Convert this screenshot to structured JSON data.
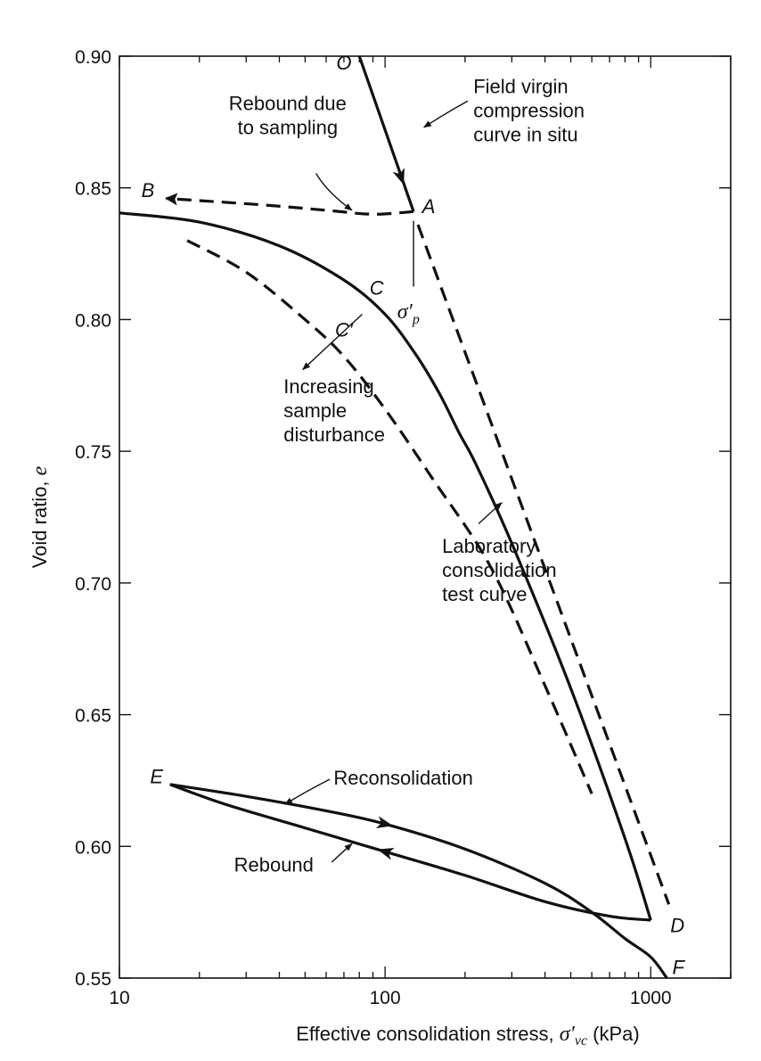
{
  "chart_data": {
    "type": "line",
    "title": "",
    "xlabel": {
      "text": "Effective consolidation stress, ",
      "symbol": "σ′",
      "subscript": "vc",
      "unit": " (kPa)"
    },
    "ylabel": {
      "text": "Void ratio, ",
      "symbol": "e"
    },
    "xscale": "log",
    "xlim": [
      10,
      2000
    ],
    "ylim": [
      0.55,
      0.9
    ],
    "x_ticks": [
      {
        "value": 10,
        "label": "10"
      },
      {
        "value": 100,
        "label": "100"
      },
      {
        "value": 1000,
        "label": "1000"
      }
    ],
    "y_ticks": [
      {
        "value": 0.9,
        "label": "0.90"
      },
      {
        "value": 0.85,
        "label": "0.85"
      },
      {
        "value": 0.8,
        "label": "0.80"
      },
      {
        "value": 0.75,
        "label": "0.75"
      },
      {
        "value": 0.7,
        "label": "0.70"
      },
      {
        "value": 0.65,
        "label": "0.65"
      },
      {
        "value": 0.6,
        "label": "0.60"
      },
      {
        "value": 0.55,
        "label": "0.55"
      }
    ],
    "series": [
      {
        "name": "field-virgin-compression",
        "style": "solid",
        "points": [
          [
            80,
            0.9
          ],
          [
            128,
            0.841
          ]
        ]
      },
      {
        "name": "rebound-due-to-sampling",
        "style": "dashed",
        "points": [
          [
            128,
            0.841
          ],
          [
            90,
            0.84
          ],
          [
            60,
            0.8415
          ],
          [
            35,
            0.8435
          ],
          [
            15,
            0.846
          ]
        ]
      },
      {
        "name": "laboratory-consolidation-curve",
        "style": "solid",
        "points": [
          [
            10,
            0.8405
          ],
          [
            20,
            0.837
          ],
          [
            40,
            0.828
          ],
          [
            70,
            0.815
          ],
          [
            100,
            0.802
          ],
          [
            130,
            0.787
          ],
          [
            160,
            0.772
          ],
          [
            190,
            0.757
          ],
          [
            220,
            0.745
          ],
          [
            300,
            0.715
          ],
          [
            500,
            0.66
          ],
          [
            800,
            0.603
          ],
          [
            1000,
            0.572
          ]
        ]
      },
      {
        "name": "disturbed-curve-cprime",
        "style": "dashed",
        "points": [
          [
            18,
            0.83
          ],
          [
            30,
            0.818
          ],
          [
            50,
            0.8
          ],
          [
            70,
            0.786
          ],
          [
            100,
            0.766
          ],
          [
            150,
            0.74
          ],
          [
            250,
            0.706
          ],
          [
            400,
            0.661
          ],
          [
            600,
            0.62
          ]
        ]
      },
      {
        "name": "field-extension-a-d",
        "style": "dashed",
        "points": [
          [
            133,
            0.836
          ],
          [
            1170,
            0.578
          ]
        ]
      },
      {
        "name": "rebound",
        "style": "solid",
        "points": [
          [
            1000,
            0.572
          ],
          [
            700,
            0.5735
          ],
          [
            400,
            0.579
          ],
          [
            200,
            0.589
          ],
          [
            100,
            0.598
          ],
          [
            50,
            0.607
          ],
          [
            25,
            0.616
          ],
          [
            15.5,
            0.6235
          ]
        ]
      },
      {
        "name": "reconsolidation",
        "style": "solid",
        "points": [
          [
            15.5,
            0.6235
          ],
          [
            30,
            0.619
          ],
          [
            60,
            0.6135
          ],
          [
            100,
            0.6085
          ],
          [
            200,
            0.599
          ],
          [
            400,
            0.586
          ],
          [
            600,
            0.575
          ],
          [
            800,
            0.565
          ],
          [
            1000,
            0.558
          ],
          [
            1150,
            0.55
          ]
        ]
      }
    ],
    "direction_arrows": [
      {
        "series": "field-virgin-compression",
        "at": [
          115,
          0.854
        ]
      },
      {
        "series": "reconsolidation",
        "at": [
          100,
          0.6085
        ]
      },
      {
        "series": "rebound",
        "at": [
          100,
          0.598
        ]
      }
    ],
    "points": [
      {
        "label": "O",
        "x": 70,
        "y": 0.895
      },
      {
        "label": "A",
        "x": 146,
        "y": 0.8405
      },
      {
        "label": "B",
        "x": 12.8,
        "y": 0.8465
      },
      {
        "label": "C",
        "x": 93,
        "y": 0.8095
      },
      {
        "label": "C′",
        "x": 70,
        "y": 0.7935
      },
      {
        "label": "D",
        "x": 1260,
        "y": 0.5675
      },
      {
        "label": "E",
        "x": 13.8,
        "y": 0.624
      },
      {
        "label": "F",
        "x": 1270,
        "y": 0.5515
      }
    ],
    "preconsolidation_marker": {
      "x": 128,
      "y_top": 0.8375,
      "y_bottom": 0.8125,
      "symbol": "σ′",
      "subscript": "p",
      "label_at": [
        120,
        0.8005
      ]
    },
    "annotations": [
      {
        "id": "field-virgin",
        "lines": [
          "Field virgin",
          "compression",
          "curve in situ"
        ],
        "anchor": "start",
        "at": [
          215,
          0.886
        ],
        "pointer": [
          [
            205,
            0.883
          ],
          [
            140,
            0.873
          ]
        ]
      },
      {
        "id": "rebound-sampling",
        "lines": [
          "Rebound due",
          "to sampling"
        ],
        "anchor": "middle",
        "at": [
          43,
          0.8795
        ],
        "pointer": [
          [
            55,
            0.8555
          ],
          [
            75,
            0.8415
          ]
        ]
      },
      {
        "id": "increasing-disturbance",
        "lines": [
          "Increasing",
          "sample",
          "disturbance"
        ],
        "anchor": "start",
        "at": [
          41.5,
          0.772
        ],
        "pointer": [
          [
            82,
            0.802
          ],
          [
            49,
            0.781
          ]
        ]
      },
      {
        "id": "lab-curve",
        "lines": [
          "Laboratory",
          "consolidation",
          "test curve"
        ],
        "anchor": "start",
        "at": [
          164,
          0.7115
        ],
        "pointer": [
          [
            225,
            0.7225
          ],
          [
            275,
            0.7305
          ]
        ]
      },
      {
        "id": "reconsolidation",
        "lines": [
          "Reconsolidation"
        ],
        "anchor": "start",
        "at": [
          64,
          0.6235
        ],
        "pointer": [
          [
            62,
            0.6255
          ],
          [
            42,
            0.616
          ]
        ]
      },
      {
        "id": "rebound",
        "lines": [
          "Rebound"
        ],
        "anchor": "start",
        "at": [
          27,
          0.5905
        ],
        "pointer": [
          [
            63,
            0.594
          ],
          [
            75,
            0.601
          ]
        ]
      }
    ]
  }
}
